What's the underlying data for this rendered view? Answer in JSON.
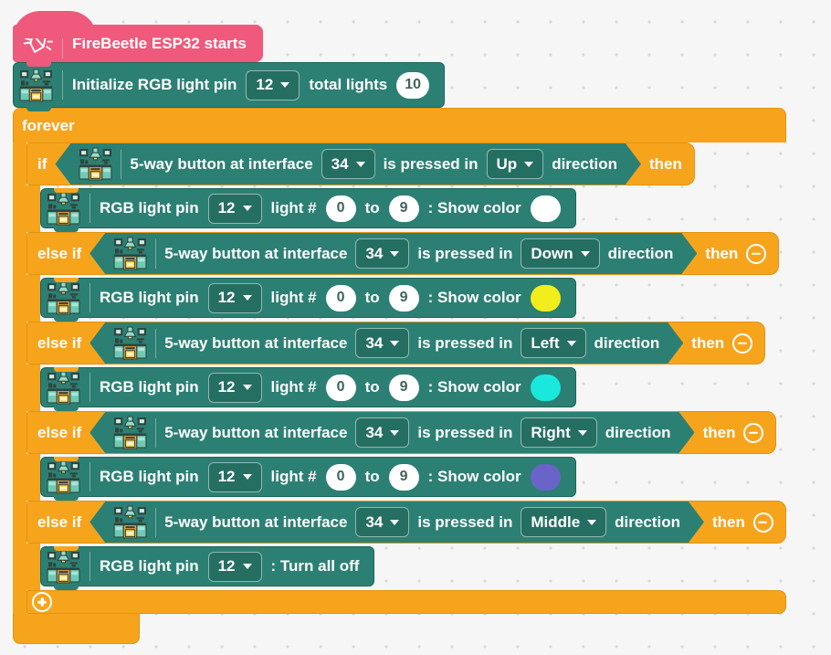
{
  "workspace": {
    "background": "#f6f6f7",
    "dot_color": "#d9d9dc"
  },
  "palette": {
    "hat_pink": "#ef5a7c",
    "block_teal": "#2c8073",
    "block_teal_border": "#1d645a",
    "control_orange": "#f7a41d",
    "control_orange_border": "#e29310",
    "pill_text": "#41635d"
  },
  "hat_block": {
    "icon": "firefly-icon",
    "label": "FireBeetle ESP32 starts"
  },
  "init_block": {
    "icon": "rgb-module-icon",
    "label_prefix": "Initialize RGB light pin",
    "pin_value": "12",
    "label_total": "total lights",
    "total_value": "10"
  },
  "forever_block": {
    "label": "forever"
  },
  "if_block": {
    "add_branch_icon": "plus-circle-icon",
    "remove_branch_icon": "minus-circle-icon",
    "branches": [
      {
        "keyword": "if",
        "then_label": "then",
        "condition": {
          "icon": "five-way-button-module-icon",
          "label_device": "5-way button at interface",
          "interface_value": "34",
          "label_pressed": "is pressed in",
          "direction_value": "Up",
          "label_direction": "direction"
        },
        "statement": {
          "icon": "rgb-module-icon",
          "label_pin": "RGB light pin",
          "pin_value": "12",
          "label_light": "light #",
          "from_value": "0",
          "label_to": "to",
          "to_value": "9",
          "label_show": ": Show color",
          "color_value": "#ffffff"
        }
      },
      {
        "keyword": "else if",
        "then_label": "then",
        "condition": {
          "icon": "five-way-button-module-icon",
          "label_device": "5-way button at interface",
          "interface_value": "34",
          "label_pressed": "is pressed in",
          "direction_value": "Down",
          "label_direction": "direction"
        },
        "statement": {
          "icon": "rgb-module-icon",
          "label_pin": "RGB light pin",
          "pin_value": "12",
          "label_light": "light #",
          "from_value": "0",
          "label_to": "to",
          "to_value": "9",
          "label_show": ": Show color",
          "color_value": "#f2ee1c"
        }
      },
      {
        "keyword": "else if",
        "then_label": "then",
        "condition": {
          "icon": "five-way-button-module-icon",
          "label_device": "5-way button at interface",
          "interface_value": "34",
          "label_pressed": "is pressed in",
          "direction_value": "Left",
          "label_direction": "direction"
        },
        "statement": {
          "icon": "rgb-module-icon",
          "label_pin": "RGB light pin",
          "pin_value": "12",
          "label_light": "light #",
          "from_value": "0",
          "label_to": "to",
          "to_value": "9",
          "label_show": ": Show color",
          "color_value": "#1be8dd"
        }
      },
      {
        "keyword": "else if",
        "then_label": "then",
        "condition": {
          "icon": "five-way-button-module-icon",
          "label_device": "5-way button at interface",
          "interface_value": "34",
          "label_pressed": "is pressed in",
          "direction_value": "Right",
          "label_direction": "direction"
        },
        "statement": {
          "icon": "rgb-module-icon",
          "label_pin": "RGB light pin",
          "pin_value": "12",
          "label_light": "light #",
          "from_value": "0",
          "label_to": "to",
          "to_value": "9",
          "label_show": ": Show color",
          "color_value": "#6a63c8"
        }
      },
      {
        "keyword": "else if",
        "then_label": "then",
        "condition": {
          "icon": "five-way-button-module-icon",
          "label_device": "5-way button at interface",
          "interface_value": "34",
          "label_pressed": "is pressed in",
          "direction_value": "Middle",
          "label_direction": "direction"
        },
        "statement": {
          "icon": "rgb-module-icon",
          "label_pin": "RGB light pin",
          "pin_value": "12",
          "label_off": ": Turn all off"
        }
      }
    ]
  }
}
